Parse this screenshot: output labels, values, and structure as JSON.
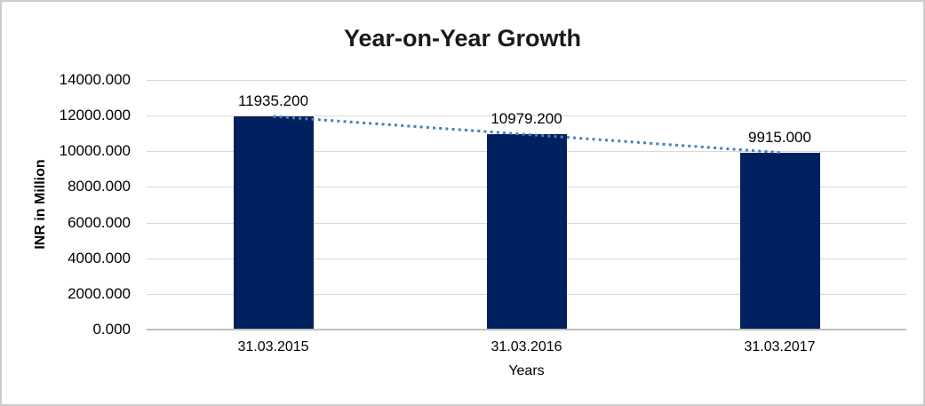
{
  "chart": {
    "title": "Year-on-Year Growth",
    "xlabel": "Years",
    "ylabel": "INR in Million"
  },
  "chart_data": {
    "type": "bar",
    "title": "Year-on-Year Growth",
    "categories": [
      "31.03.2015",
      "31.03.2016",
      "31.03.2017"
    ],
    "values": [
      11935.2,
      10979.2,
      9915.0
    ],
    "data_labels": [
      "11935.200",
      "10979.200",
      "9915.000"
    ],
    "xlabel": "Years",
    "ylabel": "INR in Million",
    "ylim": [
      0,
      14000
    ],
    "ytick_step": 2000,
    "ytick_labels": [
      "0.000",
      "2000.000",
      "4000.000",
      "6000.000",
      "8000.000",
      "10000.000",
      "12000.000",
      "14000.000"
    ],
    "grid": true,
    "legend": false,
    "trendline": "linear",
    "colors": {
      "bar": "#002060",
      "trendline": "#4a7ebb",
      "gridline": "#d9d9d9",
      "axis_line": "#bfbfbf",
      "text": "#000000"
    }
  }
}
